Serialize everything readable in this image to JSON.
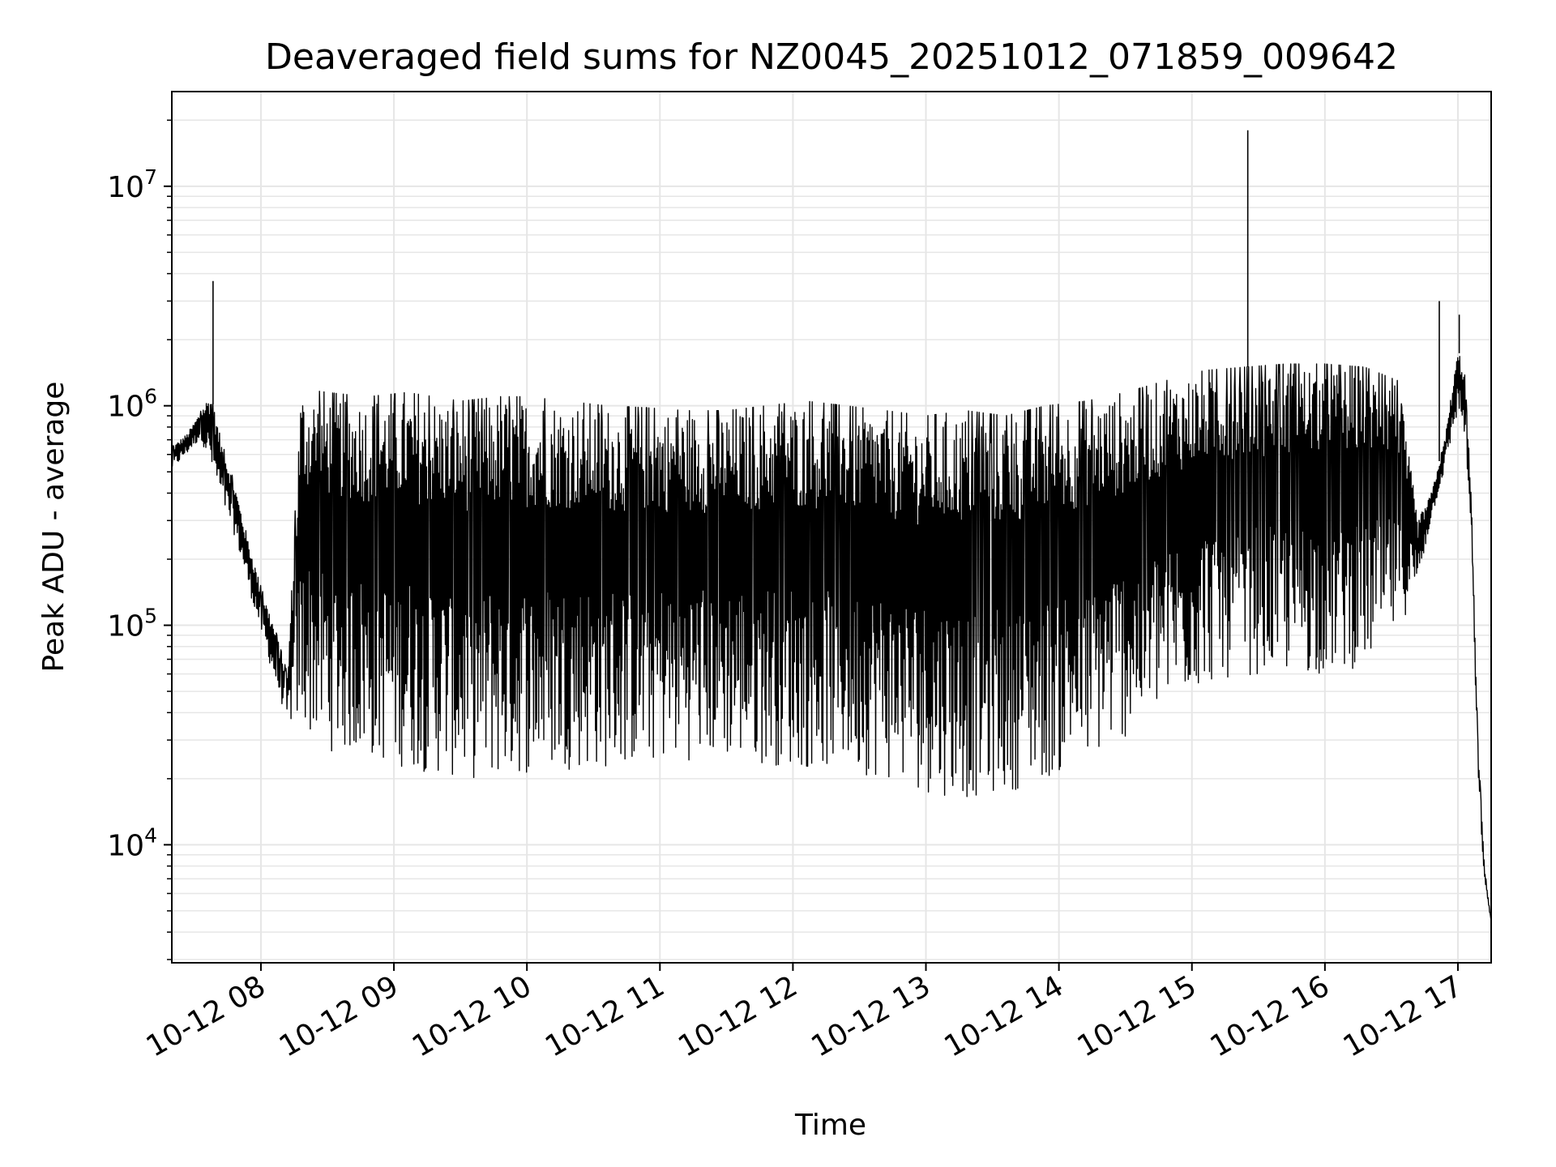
{
  "chart_data": {
    "type": "line",
    "title": "Deaveraged field sums for NZ0045_20251012_071859_009642",
    "xlabel": "Time",
    "ylabel": "Peak ADU - average",
    "yscale": "log",
    "ylim": [
      2900,
      27000000
    ],
    "xlim_hours": [
      7.33,
      17.25
    ],
    "grid": true,
    "line_color": "#000000",
    "grid_color": "#e6e6e6",
    "x_ticks": [
      {
        "hour": 8,
        "label": "10-12 08"
      },
      {
        "hour": 9,
        "label": "10-12 09"
      },
      {
        "hour": 10,
        "label": "10-12 10"
      },
      {
        "hour": 11,
        "label": "10-12 11"
      },
      {
        "hour": 12,
        "label": "10-12 12"
      },
      {
        "hour": 13,
        "label": "10-12 13"
      },
      {
        "hour": 14,
        "label": "10-12 14"
      },
      {
        "hour": 15,
        "label": "10-12 15"
      },
      {
        "hour": 16,
        "label": "10-12 16"
      },
      {
        "hour": 17,
        "label": "10-12 17"
      }
    ],
    "y_ticks": [
      {
        "value": 10000,
        "base": "10",
        "exp": "4"
      },
      {
        "value": 100000,
        "base": "10",
        "exp": "5"
      },
      {
        "value": 1000000,
        "base": "10",
        "exp": "6"
      },
      {
        "value": 10000000,
        "base": "10",
        "exp": "7"
      }
    ],
    "series": [
      {
        "name": "Peak ADU - average",
        "upper_envelope": {
          "hours": [
            7.33,
            7.45,
            7.55,
            7.62,
            7.7,
            7.8,
            7.9,
            8.0,
            8.1,
            8.2,
            8.3,
            8.5,
            8.8,
            9.1,
            9.5,
            9.8,
            10.0,
            10.3,
            10.6,
            10.9,
            11.2,
            11.5,
            11.8,
            12.1,
            12.4,
            12.7,
            13.0,
            13.3,
            13.6,
            13.9,
            14.2,
            14.5,
            14.8,
            15.1,
            15.4,
            15.7,
            16.0,
            16.3,
            16.55,
            16.7,
            16.8,
            16.9,
            17.0,
            17.05,
            17.1,
            17.15,
            17.2,
            17.25
          ],
          "values": [
            650000,
            750000,
            950000,
            1150000,
            700000,
            450000,
            250000,
            150000,
            100000,
            60000,
            1200000,
            1150000,
            1100000,
            1150000,
            1050000,
            1100000,
            1100000,
            1050000,
            1000000,
            980000,
            950000,
            950000,
            1000000,
            1050000,
            1000000,
            950000,
            900000,
            950000,
            900000,
            1000000,
            1050000,
            1150000,
            1300000,
            1450000,
            1500000,
            1550000,
            1550000,
            1500000,
            1300000,
            300000,
            400000,
            700000,
            1800000,
            1500000,
            400000,
            30000,
            8000,
            4500
          ]
        },
        "lower_envelope": {
          "hours": [
            7.33,
            7.45,
            7.55,
            7.62,
            7.7,
            7.8,
            7.9,
            8.0,
            8.1,
            8.2,
            8.3,
            8.5,
            8.8,
            9.1,
            9.5,
            9.8,
            10.0,
            10.3,
            10.6,
            10.9,
            11.2,
            11.5,
            11.8,
            12.1,
            12.4,
            12.7,
            13.0,
            13.3,
            13.6,
            13.9,
            14.2,
            14.5,
            14.8,
            15.1,
            15.4,
            15.7,
            16.0,
            16.3,
            16.55,
            16.7,
            16.8,
            16.9,
            17.0,
            17.05,
            17.1,
            17.15,
            17.2,
            17.25
          ],
          "values": [
            500000,
            600000,
            700000,
            500000,
            350000,
            250000,
            150000,
            90000,
            55000,
            35000,
            28000,
            22000,
            20000,
            18000,
            16000,
            16000,
            17000,
            18000,
            18000,
            19000,
            20000,
            20000,
            19000,
            18000,
            18000,
            16000,
            14000,
            13000,
            14000,
            16000,
            19000,
            25000,
            35000,
            45000,
            50000,
            50000,
            50000,
            55000,
            80000,
            150000,
            300000,
            500000,
            900000,
            700000,
            250000,
            20000,
            6500,
            4500
          ]
        },
        "spikes": [
          {
            "hour": 7.64,
            "value": 3700000
          },
          {
            "hour": 15.42,
            "value": 18000000
          },
          {
            "hour": 16.86,
            "value": 3000000
          },
          {
            "hour": 17.01,
            "value": 2600000
          }
        ]
      }
    ]
  }
}
